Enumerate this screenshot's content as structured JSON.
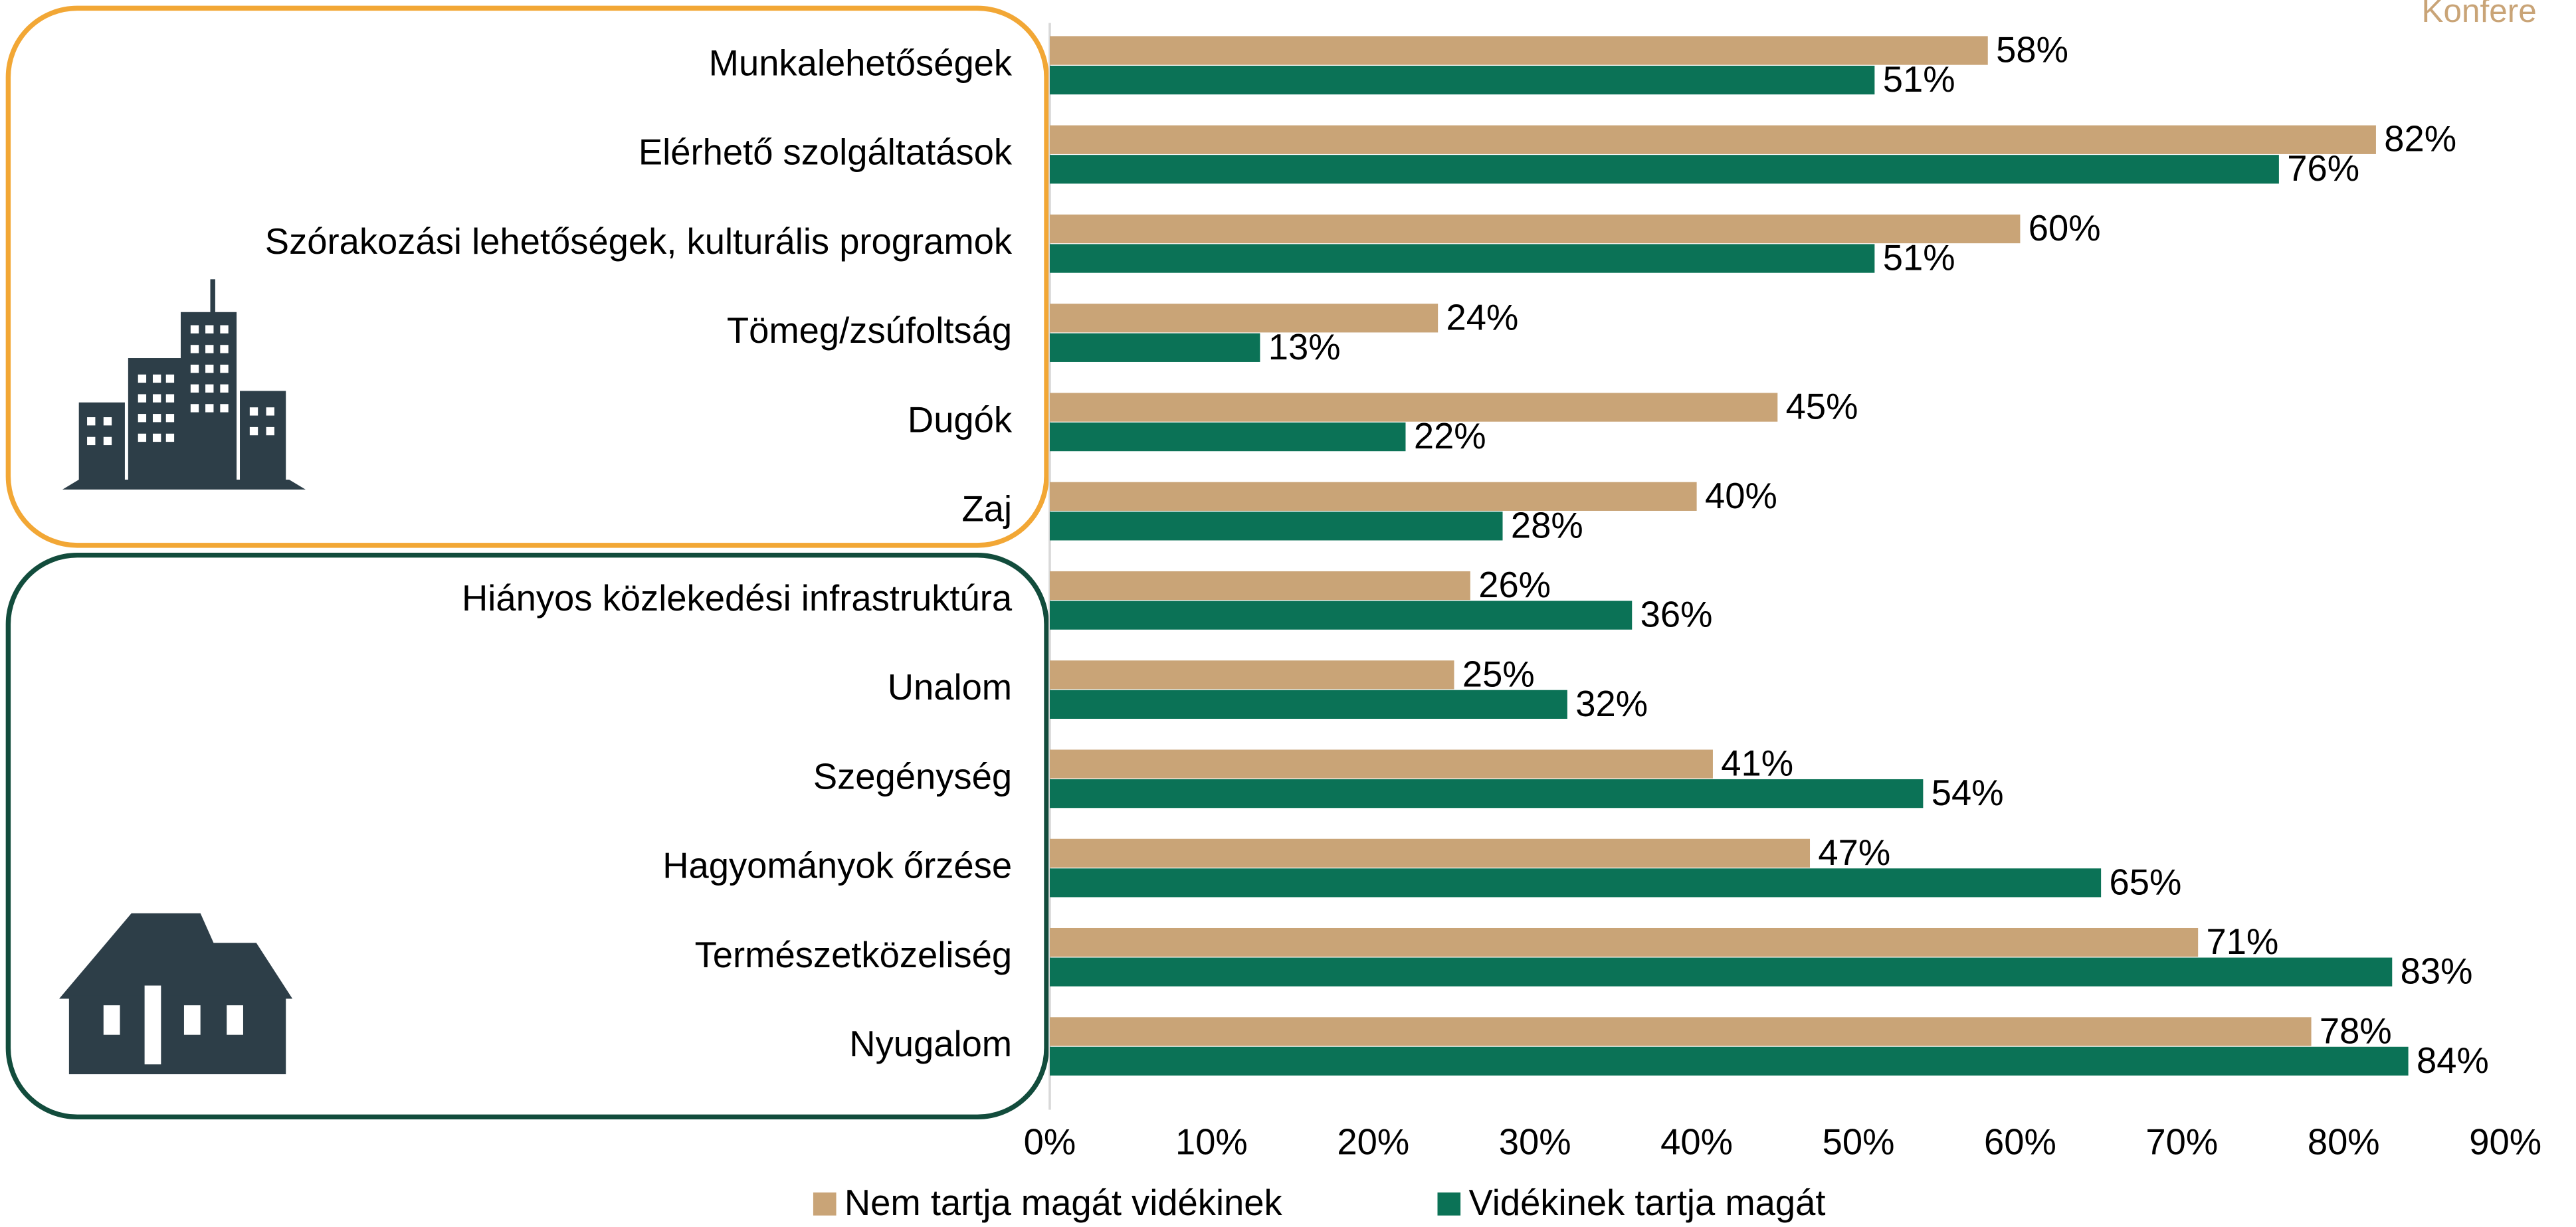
{
  "corner_text": "Konfere",
  "chart_data": {
    "type": "hbar",
    "categories": [
      "Munkalehetőségek",
      "Elérhető szolgáltatások",
      "Szórakozási lehetőségek, kulturális programok",
      "Tömeg/zsúfoltság",
      "Dugók",
      "Zaj",
      "Hiányos közlekedési infrastruktúra",
      "Unalom",
      "Szegénység",
      "Hagyományok őrzése",
      "Természetközeliség",
      "Nyugalom"
    ],
    "series": [
      {
        "name": "Nem tartja magát vidékinek",
        "color": "#c9a477",
        "values": [
          58,
          82,
          60,
          24,
          45,
          40,
          26,
          25,
          41,
          47,
          71,
          78
        ],
        "value_labels": [
          "58%",
          "82%",
          "60%",
          "24%",
          "45%",
          "40%",
          "26%",
          "25%",
          "41%",
          "47%",
          "71%",
          "78%"
        ]
      },
      {
        "name": "Vidékinek tartja magát",
        "color": "#0b7256",
        "values": [
          51,
          76,
          51,
          13,
          22,
          28,
          36,
          32,
          54,
          65,
          83,
          84
        ],
        "value_labels": [
          "51%",
          "76%",
          "51%",
          "13%",
          "22%",
          "28%",
          "36%",
          "32%",
          "54%",
          "65%",
          "83%",
          "84%"
        ]
      }
    ],
    "xlim": [
      0,
      90
    ],
    "xticks": [
      {
        "value": 0,
        "label": "0%"
      },
      {
        "value": 10,
        "label": "10%"
      },
      {
        "value": 20,
        "label": "20%"
      },
      {
        "value": 30,
        "label": "30%"
      },
      {
        "value": 40,
        "label": "40%"
      },
      {
        "value": 50,
        "label": "50%"
      },
      {
        "value": 60,
        "label": "60%"
      },
      {
        "value": 70,
        "label": "70%"
      },
      {
        "value": 80,
        "label": "80%"
      },
      {
        "value": 90,
        "label": "90%"
      }
    ],
    "legend": "bottom"
  }
}
